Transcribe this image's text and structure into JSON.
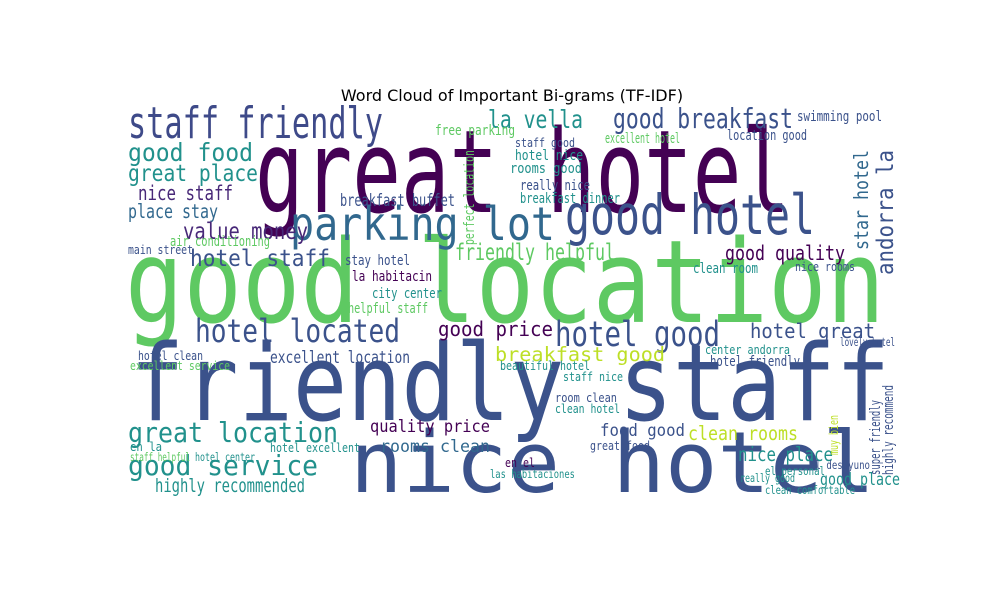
{
  "chart_data": {
    "type": "wordcloud",
    "title": "Word Cloud of Important Bi-grams (TF-IDF)",
    "words": [
      {
        "text": "great hotel",
        "value": 100,
        "color": "#440154"
      },
      {
        "text": "good location",
        "value": 100,
        "color": "#5ec962"
      },
      {
        "text": "friendly staff",
        "value": 92,
        "color": "#3b528b"
      },
      {
        "text": "nice hotel",
        "value": 74,
        "color": "#3b528b"
      },
      {
        "text": "staff friendly",
        "value": 38,
        "color": "#3e4a89"
      },
      {
        "text": "parking lot",
        "value": 40,
        "color": "#31688e"
      },
      {
        "text": "good hotel",
        "value": 48,
        "color": "#3b528b"
      },
      {
        "text": "good breakfast",
        "value": 24,
        "color": "#3b528b"
      },
      {
        "text": "la vella",
        "value": 22,
        "color": "#21918c"
      },
      {
        "text": "good food",
        "value": 22,
        "color": "#21918c"
      },
      {
        "text": "great place",
        "value": 20,
        "color": "#21918c"
      },
      {
        "text": "nice staff",
        "value": 18,
        "color": "#482878"
      },
      {
        "text": "place stay",
        "value": 17,
        "color": "#31688e"
      },
      {
        "text": "value money",
        "value": 20,
        "color": "#482878"
      },
      {
        "text": "hotel staff",
        "value": 20,
        "color": "#3b528b"
      },
      {
        "text": "friendly helpful",
        "value": 20,
        "color": "#5ec962"
      },
      {
        "text": "good quality",
        "value": 18,
        "color": "#440154"
      },
      {
        "text": "breakfast buffet",
        "value": 15,
        "color": "#3b528b"
      },
      {
        "text": "hotel located",
        "value": 28,
        "color": "#3b528b"
      },
      {
        "text": "good price",
        "value": 18,
        "color": "#440154"
      },
      {
        "text": "hotel good",
        "value": 30,
        "color": "#3b528b"
      },
      {
        "text": "hotel great",
        "value": 18,
        "color": "#3b528b"
      },
      {
        "text": "breakfast good",
        "value": 17,
        "color": "#bddf26"
      },
      {
        "text": "excellent location",
        "value": 15,
        "color": "#3b528b"
      },
      {
        "text": "great location",
        "value": 24,
        "color": "#21918c"
      },
      {
        "text": "good service",
        "value": 24,
        "color": "#21918c"
      },
      {
        "text": "highly recommended",
        "value": 16,
        "color": "#21918c"
      },
      {
        "text": "quality price",
        "value": 15,
        "color": "#440154"
      },
      {
        "text": "rooms clean",
        "value": 15,
        "color": "#31688e"
      },
      {
        "text": "food good",
        "value": 15,
        "color": "#3b528b"
      },
      {
        "text": "clean rooms",
        "value": 17,
        "color": "#bddf26"
      },
      {
        "text": "nice place",
        "value": 17,
        "color": "#21918c"
      },
      {
        "text": "good place",
        "value": 15,
        "color": "#21918c"
      },
      {
        "text": "star hotel",
        "value": 17,
        "color": "#31688e"
      },
      {
        "text": "andorra la",
        "value": 20,
        "color": "#3b528b"
      },
      {
        "text": "perfect location",
        "value": 12,
        "color": "#5ec962"
      },
      {
        "text": "super friendly",
        "value": 12,
        "color": "#3b528b"
      },
      {
        "text": "highly recommend",
        "value": 12,
        "color": "#3b528b"
      },
      {
        "text": "muy bien",
        "value": 11,
        "color": "#bddf26"
      },
      {
        "text": "excellent hotel",
        "value": 12,
        "color": "#5ec962"
      },
      {
        "text": "swimming pool",
        "value": 12,
        "color": "#3b528b"
      },
      {
        "text": "location good",
        "value": 12,
        "color": "#3b528b"
      },
      {
        "text": "rooms good",
        "value": 12,
        "color": "#21918c"
      },
      {
        "text": "hotel nice",
        "value": 12,
        "color": "#21918c"
      },
      {
        "text": "really nice",
        "value": 12,
        "color": "#3b528b"
      },
      {
        "text": "free parking",
        "value": 12,
        "color": "#5ec962"
      },
      {
        "text": "breakfast dinner",
        "value": 12,
        "color": "#21918c"
      },
      {
        "text": "main street",
        "value": 11,
        "color": "#3b528b"
      },
      {
        "text": "air conditioning",
        "value": 12,
        "color": "#5ec962"
      },
      {
        "text": "stay hotel",
        "value": 12,
        "color": "#3b528b"
      },
      {
        "text": "la habitacin",
        "value": 12,
        "color": "#440154"
      },
      {
        "text": "city center",
        "value": 12,
        "color": "#21918c"
      },
      {
        "text": "helpful staff",
        "value": 12,
        "color": "#5ec962"
      },
      {
        "text": "clean room",
        "value": 12,
        "color": "#21918c"
      },
      {
        "text": "nice rooms",
        "value": 11,
        "color": "#3b528b"
      },
      {
        "text": "center andorra",
        "value": 11,
        "color": "#21918c"
      },
      {
        "text": "hotel friendly",
        "value": 12,
        "color": "#3b528b"
      },
      {
        "text": "hotel clean",
        "value": 11,
        "color": "#3b528b"
      },
      {
        "text": "excellent service",
        "value": 11,
        "color": "#5ec962"
      },
      {
        "text": "beautiful hotel",
        "value": 11,
        "color": "#21918c"
      },
      {
        "text": "staff nice",
        "value": 11,
        "color": "#21918c"
      },
      {
        "text": "room clean",
        "value": 11,
        "color": "#3b528b"
      },
      {
        "text": "clean hotel",
        "value": 11,
        "color": "#21918c"
      },
      {
        "text": "staff good",
        "value": 11,
        "color": "#3b528b"
      },
      {
        "text": "hotel excellent",
        "value": 11,
        "color": "#21918c"
      },
      {
        "text": "en la",
        "value": 11,
        "color": "#21918c"
      },
      {
        "text": "staff helpful",
        "value": 10,
        "color": "#5ec962"
      },
      {
        "text": "hotel center",
        "value": 10,
        "color": "#21918c"
      },
      {
        "text": "en el",
        "value": 11,
        "color": "#440154"
      },
      {
        "text": "great food",
        "value": 11,
        "color": "#3b528b"
      },
      {
        "text": "las habitaciones",
        "value": 10,
        "color": "#21918c"
      },
      {
        "text": "el desayuno",
        "value": 10,
        "color": "#3b528b"
      },
      {
        "text": "el personal",
        "value": 10,
        "color": "#21918c"
      },
      {
        "text": "clean comfortable",
        "value": 10,
        "color": "#21918c"
      },
      {
        "text": "really good",
        "value": 10,
        "color": "#21918c"
      },
      {
        "text": "lovely hotel",
        "value": 10,
        "color": "#3b528b"
      }
    ]
  }
}
